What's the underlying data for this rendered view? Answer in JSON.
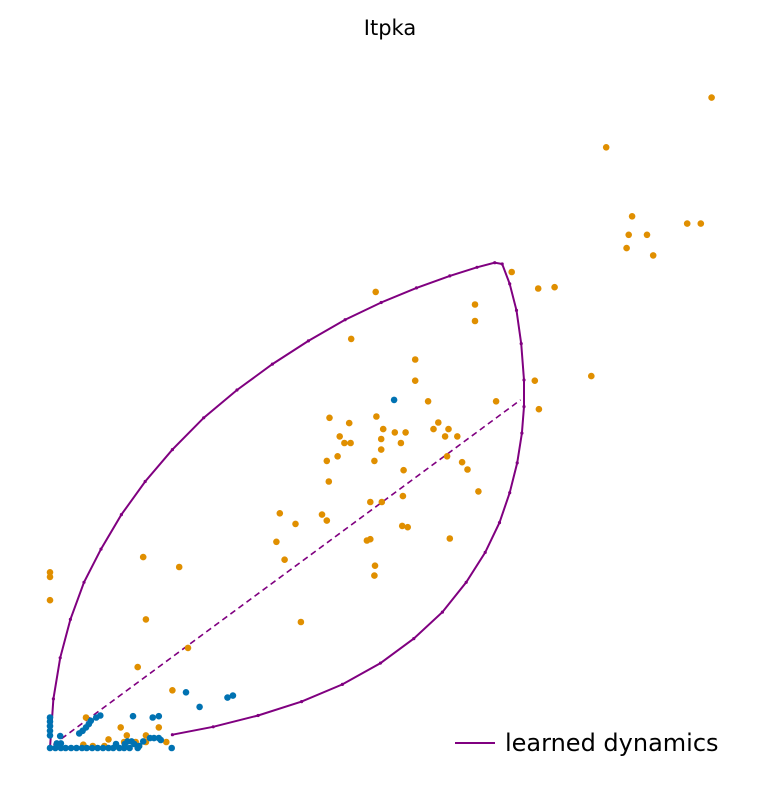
{
  "chart_data": {
    "type": "scatter",
    "title": "Itpka",
    "xlabel": "",
    "ylabel": "",
    "axes_visible": false,
    "grid": false,
    "xlim": [
      0,
      100
    ],
    "ylim": [
      0,
      100
    ],
    "legend": {
      "position": "bottom-right",
      "entries": [
        {
          "label": "learned dynamics",
          "style": "line",
          "color": "#800080"
        }
      ]
    },
    "colors": {
      "orange": "#E08F00",
      "blue": "#0072B2",
      "purple": "#800080"
    },
    "series": [
      {
        "kind": "points",
        "color": "#E08F00",
        "values": [
          [
            97.3,
            98.1
          ],
          [
            81.8,
            90.6
          ],
          [
            85.6,
            80.2
          ],
          [
            93.7,
            79.1
          ],
          [
            95.7,
            79.1
          ],
          [
            85.1,
            77.4
          ],
          [
            87.8,
            77.4
          ],
          [
            84.8,
            75.4
          ],
          [
            88.7,
            74.3
          ],
          [
            67.9,
            71.8
          ],
          [
            71.8,
            69.3
          ],
          [
            74.2,
            69.5
          ],
          [
            47.9,
            68.8
          ],
          [
            62.5,
            66.9
          ],
          [
            62.5,
            64.4
          ],
          [
            44.3,
            61.7
          ],
          [
            53.7,
            58.6
          ],
          [
            53.7,
            55.4
          ],
          [
            71.3,
            55.4
          ],
          [
            79.6,
            56.1
          ],
          [
            55.6,
            52.3
          ],
          [
            65.6,
            52.3
          ],
          [
            71.9,
            51.1
          ],
          [
            41.1,
            49.8
          ],
          [
            57.1,
            49.1
          ],
          [
            48.0,
            50.0
          ],
          [
            44.0,
            49.0
          ],
          [
            49.0,
            48.1
          ],
          [
            48.7,
            46.6
          ],
          [
            56.4,
            48.1
          ],
          [
            58.6,
            48.1
          ],
          [
            58.1,
            47.0
          ],
          [
            59.9,
            47.0
          ],
          [
            50.7,
            47.6
          ],
          [
            52.3,
            47.6
          ],
          [
            42.6,
            47.0
          ],
          [
            43.3,
            46.0
          ],
          [
            44.2,
            46.0
          ],
          [
            51.6,
            46.0
          ],
          [
            42.3,
            44.0
          ],
          [
            48.7,
            45.0
          ],
          [
            58.4,
            44.0
          ],
          [
            60.6,
            43.1
          ],
          [
            61.4,
            42.0
          ],
          [
            40.7,
            43.3
          ],
          [
            47.7,
            43.3
          ],
          [
            52.0,
            41.9
          ],
          [
            41.0,
            40.2
          ],
          [
            51.9,
            38.0
          ],
          [
            63.0,
            38.7
          ],
          [
            47.1,
            37.1
          ],
          [
            48.8,
            37.1
          ],
          [
            33.8,
            35.4
          ],
          [
            40.0,
            35.2
          ],
          [
            40.7,
            34.3
          ],
          [
            51.8,
            33.5
          ],
          [
            52.6,
            33.3
          ],
          [
            47.1,
            31.5
          ],
          [
            46.6,
            31.3
          ],
          [
            33.3,
            31.1
          ],
          [
            36.1,
            33.8
          ],
          [
            58.8,
            31.6
          ],
          [
            34.5,
            28.4
          ],
          [
            47.8,
            27.5
          ],
          [
            47.7,
            26.0
          ],
          [
            13.7,
            28.8
          ],
          [
            19.0,
            27.3
          ],
          [
            0.0,
            26.5
          ],
          [
            0.0,
            25.8
          ],
          [
            0.0,
            22.3
          ],
          [
            14.1,
            19.4
          ],
          [
            36.9,
            19.0
          ],
          [
            20.3,
            15.1
          ],
          [
            12.9,
            12.2
          ],
          [
            18.0,
            8.7
          ],
          [
            5.3,
            4.6
          ],
          [
            10.4,
            3.1
          ],
          [
            16.0,
            3.1
          ],
          [
            11.3,
            1.9
          ],
          [
            14.1,
            1.9
          ],
          [
            8.6,
            1.3
          ],
          [
            10.9,
            0.9
          ],
          [
            12.6,
            0.9
          ],
          [
            14.1,
            0.9
          ],
          [
            17.1,
            0.9
          ],
          [
            4.9,
            0.5
          ],
          [
            6.3,
            0.3
          ],
          [
            8.0,
            0.3
          ],
          [
            9.7,
            0.3
          ],
          [
            13.1,
            0.3
          ]
        ]
      },
      {
        "kind": "points",
        "color": "#0072B2",
        "values": [
          [
            50.6,
            52.5
          ],
          [
            20.0,
            8.4
          ],
          [
            26.9,
            7.9
          ],
          [
            26.1,
            7.6
          ],
          [
            22.0,
            6.2
          ],
          [
            12.2,
            4.8
          ],
          [
            15.1,
            4.6
          ],
          [
            16.0,
            4.8
          ],
          [
            6.8,
            4.6
          ],
          [
            6.0,
            4.1
          ],
          [
            7.4,
            4.9
          ],
          [
            5.7,
            3.6
          ],
          [
            5.3,
            3.1
          ],
          [
            4.8,
            2.6
          ],
          [
            4.3,
            2.2
          ],
          [
            0.0,
            4.6
          ],
          [
            0.0,
            4.0
          ],
          [
            0.0,
            3.3
          ],
          [
            0.0,
            2.6
          ],
          [
            0.0,
            1.9
          ],
          [
            1.5,
            1.8
          ],
          [
            1.6,
            0.7
          ],
          [
            15.3,
            1.5
          ],
          [
            16.0,
            1.5
          ],
          [
            16.3,
            1.2
          ],
          [
            14.7,
            1.5
          ],
          [
            11.4,
            1.0
          ],
          [
            12.0,
            1.0
          ],
          [
            13.7,
            1.0
          ],
          [
            11.0,
            0.6
          ],
          [
            9.7,
            0.6
          ],
          [
            12.4,
            0.6
          ],
          [
            13.1,
            0.3
          ],
          [
            0.0,
            0.0
          ],
          [
            0.8,
            0.0
          ],
          [
            1.6,
            0.0
          ],
          [
            2.3,
            0.0
          ],
          [
            3.1,
            0.0
          ],
          [
            3.9,
            0.0
          ],
          [
            4.7,
            0.0
          ],
          [
            5.4,
            0.0
          ],
          [
            6.2,
            0.0
          ],
          [
            7.0,
            0.0
          ],
          [
            7.8,
            0.0
          ],
          [
            8.6,
            0.0
          ],
          [
            9.3,
            0.0
          ],
          [
            10.2,
            0.0
          ],
          [
            11.7,
            0.0
          ],
          [
            17.9,
            0.0
          ],
          [
            12.9,
            0.0
          ],
          [
            10.9,
            0.0
          ],
          [
            1.0,
            0.7
          ]
        ]
      },
      {
        "kind": "curve",
        "name": "learned dynamics",
        "color": "#800080",
        "style": "solid",
        "values": [
          [
            0.0,
            0.0
          ],
          [
            0.5,
            7.4
          ],
          [
            1.5,
            13.6
          ],
          [
            3.0,
            19.4
          ],
          [
            5.0,
            25.0
          ],
          [
            7.5,
            30.0
          ],
          [
            10.5,
            35.2
          ],
          [
            14.0,
            40.2
          ],
          [
            18.0,
            45.0
          ],
          [
            22.6,
            49.8
          ],
          [
            27.5,
            54.0
          ],
          [
            32.7,
            57.9
          ],
          [
            38.0,
            61.4
          ],
          [
            43.4,
            64.6
          ],
          [
            48.7,
            67.2
          ],
          [
            53.9,
            69.4
          ],
          [
            58.8,
            71.2
          ],
          [
            62.8,
            72.5
          ],
          [
            65.4,
            73.2
          ],
          [
            66.5,
            73.0
          ],
          [
            67.6,
            70.0
          ],
          [
            68.6,
            66.0
          ],
          [
            69.3,
            61.0
          ],
          [
            69.7,
            55.5
          ],
          [
            69.7,
            51.5
          ],
          [
            69.4,
            47.5
          ],
          [
            68.7,
            43.0
          ],
          [
            67.6,
            38.5
          ],
          [
            66.1,
            34.0
          ],
          [
            64.0,
            29.5
          ],
          [
            61.2,
            25.0
          ],
          [
            57.7,
            20.5
          ],
          [
            53.5,
            16.5
          ],
          [
            48.6,
            12.8
          ],
          [
            43.0,
            9.6
          ],
          [
            37.0,
            7.0
          ],
          [
            30.6,
            4.9
          ],
          [
            24.0,
            3.2
          ],
          [
            18.0,
            2.0
          ]
        ]
      },
      {
        "kind": "curve",
        "color": "#800080",
        "style": "dashed",
        "values": [
          [
            0.5,
            0.5
          ],
          [
            69.2,
            52.5
          ]
        ]
      }
    ]
  }
}
